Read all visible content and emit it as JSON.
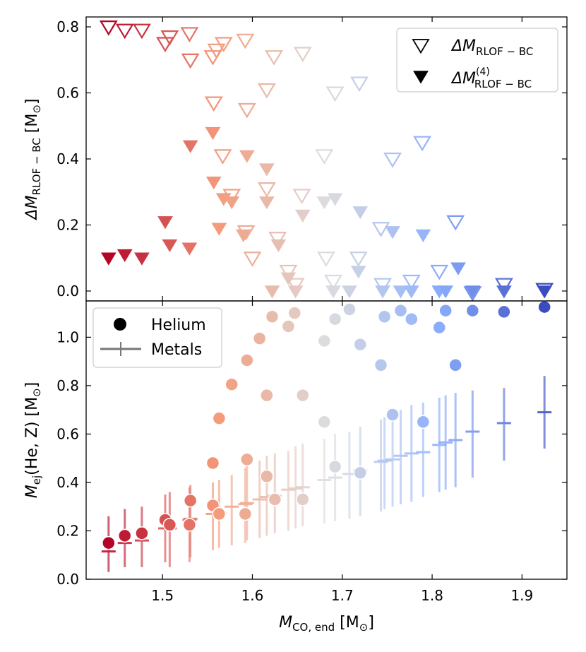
{
  "colors": {
    "cold": "#3a4cc0",
    "mid": "#dddcdc",
    "warm": "#b40426",
    "text": "#000000",
    "legend_border": "#cccccc"
  },
  "chart_data": [
    {
      "panel": "top",
      "type": "scatter",
      "xlabel": "M",
      "xlabel_sub": "CO, end",
      "xlabel_unit": "[M",
      "xlabel_unit_sub": "⊙",
      "xlabel_unit_close": "]",
      "ylabel": "ΔM",
      "ylabel_sub": "RLOF − BC",
      "ylabel_unit": "[M",
      "ylabel_unit_sub": "⊙",
      "ylabel_unit_close": "]",
      "xlim": [
        1.415,
        1.95
      ],
      "ylim": [
        -0.03,
        0.83
      ],
      "xticks": [
        "1.5",
        "1.6",
        "1.7",
        "1.8",
        "1.9"
      ],
      "xtick_values": [
        1.5,
        1.6,
        1.7,
        1.8,
        1.9
      ],
      "yticks": [
        "0.0",
        "0.2",
        "0.4",
        "0.6",
        "0.8"
      ],
      "ytick_values": [
        0.0,
        0.2,
        0.4,
        0.6,
        0.8
      ],
      "legend": [
        {
          "label": "ΔM",
          "sub": "RLOF − BC",
          "sup": "",
          "marker": "open-triangle"
        },
        {
          "label": "ΔM",
          "sub": "RLOF − BC",
          "sup": "(4)",
          "marker": "filled-triangle"
        }
      ],
      "series": [
        {
          "name": "ΔM_RLOF-BC",
          "marker": "open-triangle",
          "points": [
            [
              1.44,
              0.8
            ],
            [
              1.458,
              0.79
            ],
            [
              1.477,
              0.79
            ],
            [
              1.503,
              0.75
            ],
            [
              1.508,
              0.77
            ],
            [
              1.53,
              0.78
            ],
            [
              1.531,
              0.7
            ],
            [
              1.556,
              0.71
            ],
            [
              1.56,
              0.73
            ],
            [
              1.568,
              0.75
            ],
            [
              1.592,
              0.76
            ],
            [
              1.624,
              0.71
            ],
            [
              1.656,
              0.72
            ],
            [
              1.616,
              0.61
            ],
            [
              1.557,
              0.57
            ],
            [
              1.594,
              0.55
            ],
            [
              1.567,
              0.41
            ],
            [
              1.577,
              0.29
            ],
            [
              1.593,
              0.18
            ],
            [
              1.6,
              0.1
            ],
            [
              1.616,
              0.31
            ],
            [
              1.628,
              0.16
            ],
            [
              1.64,
              0.06
            ],
            [
              1.648,
              0.02
            ],
            [
              1.655,
              0.29
            ],
            [
              1.68,
              0.41
            ],
            [
              1.692,
              0.6
            ],
            [
              1.719,
              0.63
            ],
            [
              1.682,
              0.1
            ],
            [
              1.69,
              0.03
            ],
            [
              1.718,
              0.1
            ],
            [
              1.743,
              0.19
            ],
            [
              1.745,
              0.02
            ],
            [
              1.756,
              0.4
            ],
            [
              1.777,
              0.03
            ],
            [
              1.789,
              0.45
            ],
            [
              1.808,
              0.06
            ],
            [
              1.826,
              0.21
            ],
            [
              1.845,
              -0.005
            ],
            [
              1.88,
              0.02
            ],
            [
              1.925,
              0.005
            ]
          ]
        },
        {
          "name": "ΔM_RLOF-BC^(4)",
          "marker": "filled-triangle",
          "points": [
            [
              1.44,
              0.1
            ],
            [
              1.458,
              0.11
            ],
            [
              1.477,
              0.1
            ],
            [
              1.503,
              0.21
            ],
            [
              1.508,
              0.14
            ],
            [
              1.53,
              0.13
            ],
            [
              1.531,
              0.44
            ],
            [
              1.556,
              0.48
            ],
            [
              1.557,
              0.33
            ],
            [
              1.563,
              0.19
            ],
            [
              1.568,
              0.28
            ],
            [
              1.577,
              0.27
            ],
            [
              1.59,
              0.17
            ],
            [
              1.594,
              0.41
            ],
            [
              1.616,
              0.37
            ],
            [
              1.616,
              0.27
            ],
            [
              1.622,
              0.0
            ],
            [
              1.629,
              0.14
            ],
            [
              1.64,
              0.04
            ],
            [
              1.648,
              0.0
            ],
            [
              1.656,
              0.23
            ],
            [
              1.68,
              0.27
            ],
            [
              1.692,
              0.28
            ],
            [
              1.69,
              0.0
            ],
            [
              1.708,
              0.0
            ],
            [
              1.718,
              0.06
            ],
            [
              1.72,
              0.24
            ],
            [
              1.745,
              0.0
            ],
            [
              1.756,
              0.18
            ],
            [
              1.765,
              0.0
            ],
            [
              1.777,
              0.0
            ],
            [
              1.79,
              0.17
            ],
            [
              1.808,
              0.0
            ],
            [
              1.815,
              0.0
            ],
            [
              1.829,
              0.07
            ],
            [
              1.845,
              0.0
            ],
            [
              1.88,
              0.0
            ],
            [
              1.925,
              0.0
            ]
          ]
        }
      ]
    },
    {
      "panel": "bottom",
      "type": "scatter",
      "xlabel": "M",
      "xlabel_sub": "CO, end",
      "xlabel_unit": "[M",
      "xlabel_unit_sub": "⊙",
      "xlabel_unit_close": "]",
      "ylabel": "M",
      "ylabel_sub": "ej",
      "ylabel_rest": "(He, Z) [M",
      "ylabel_unit_sub": "⊙",
      "ylabel_unit_close": "]",
      "xlim": [
        1.415,
        1.95
      ],
      "ylim": [
        0.0,
        1.15
      ],
      "xticks": [
        "1.5",
        "1.6",
        "1.7",
        "1.8",
        "1.9"
      ],
      "xtick_values": [
        1.5,
        1.6,
        1.7,
        1.8,
        1.9
      ],
      "yticks": [
        "0.0",
        "0.2",
        "0.4",
        "0.6",
        "0.8",
        "1.0"
      ],
      "ytick_values": [
        0.0,
        0.2,
        0.4,
        0.6,
        0.8,
        1.0
      ],
      "legend": [
        {
          "label": "Helium",
          "marker": "circle"
        },
        {
          "label": "Metals",
          "marker": "errorbar"
        }
      ],
      "series": [
        {
          "name": "Helium",
          "marker": "circle",
          "points": [
            [
              1.44,
              0.15
            ],
            [
              1.458,
              0.18
            ],
            [
              1.477,
              0.19
            ],
            [
              1.503,
              0.245
            ],
            [
              1.508,
              0.225
            ],
            [
              1.53,
              0.225
            ],
            [
              1.531,
              0.325
            ],
            [
              1.556,
              0.305
            ],
            [
              1.556,
              0.48
            ],
            [
              1.563,
              0.27
            ],
            [
              1.563,
              0.665
            ],
            [
              1.577,
              0.805
            ],
            [
              1.592,
              0.27
            ],
            [
              1.594,
              0.495
            ],
            [
              1.594,
              0.905
            ],
            [
              1.608,
              0.995
            ],
            [
              1.616,
              0.425
            ],
            [
              1.616,
              0.76
            ],
            [
              1.622,
              1.085
            ],
            [
              1.625,
              0.33
            ],
            [
              1.64,
              1.045
            ],
            [
              1.647,
              1.1
            ],
            [
              1.656,
              0.33
            ],
            [
              1.656,
              0.76
            ],
            [
              1.68,
              0.65
            ],
            [
              1.68,
              0.985
            ],
            [
              1.692,
              1.075
            ],
            [
              1.692,
              0.465
            ],
            [
              1.708,
              1.115
            ],
            [
              1.72,
              0.44
            ],
            [
              1.72,
              0.97
            ],
            [
              1.743,
              0.885
            ],
            [
              1.747,
              1.085
            ],
            [
              1.756,
              0.68
            ],
            [
              1.765,
              1.11
            ],
            [
              1.777,
              1.075
            ],
            [
              1.79,
              0.65
            ],
            [
              1.808,
              1.04
            ],
            [
              1.815,
              1.11
            ],
            [
              1.826,
              0.885
            ],
            [
              1.845,
              1.11
            ],
            [
              1.88,
              1.105
            ],
            [
              1.925,
              1.125
            ]
          ]
        },
        {
          "name": "Metals",
          "marker": "errorbar",
          "points": [
            [
              1.44,
              0.115,
              0.03,
              0.26
            ],
            [
              1.458,
              0.15,
              0.05,
              0.29
            ],
            [
              1.477,
              0.16,
              0.05,
              0.3
            ],
            [
              1.503,
              0.21,
              0.07,
              0.35
            ],
            [
              1.508,
              0.21,
              0.05,
              0.36
            ],
            [
              1.53,
              0.245,
              0.07,
              0.38
            ],
            [
              1.531,
              0.25,
              0.09,
              0.39
            ],
            [
              1.556,
              0.27,
              0.12,
              0.4
            ],
            [
              1.563,
              0.275,
              0.13,
              0.41
            ],
            [
              1.577,
              0.3,
              0.14,
              0.43
            ],
            [
              1.592,
              0.31,
              0.15,
              0.46
            ],
            [
              1.594,
              0.315,
              0.16,
              0.47
            ],
            [
              1.608,
              0.33,
              0.17,
              0.49
            ],
            [
              1.616,
              0.34,
              0.18,
              0.51
            ],
            [
              1.625,
              0.345,
              0.19,
              0.52
            ],
            [
              1.64,
              0.37,
              0.2,
              0.53
            ],
            [
              1.648,
              0.375,
              0.21,
              0.55
            ],
            [
              1.656,
              0.38,
              0.22,
              0.56
            ],
            [
              1.68,
              0.41,
              0.23,
              0.58
            ],
            [
              1.692,
              0.42,
              0.24,
              0.6
            ],
            [
              1.708,
              0.435,
              0.25,
              0.61
            ],
            [
              1.72,
              0.45,
              0.26,
              0.63
            ],
            [
              1.743,
              0.485,
              0.28,
              0.66
            ],
            [
              1.747,
              0.49,
              0.29,
              0.67
            ],
            [
              1.756,
              0.495,
              0.3,
              0.69
            ],
            [
              1.765,
              0.51,
              0.31,
              0.7
            ],
            [
              1.777,
              0.52,
              0.32,
              0.72
            ],
            [
              1.79,
              0.525,
              0.34,
              0.73
            ],
            [
              1.808,
              0.555,
              0.36,
              0.75
            ],
            [
              1.815,
              0.565,
              0.37,
              0.76
            ],
            [
              1.826,
              0.575,
              0.38,
              0.77
            ],
            [
              1.845,
              0.61,
              0.42,
              0.78
            ],
            [
              1.88,
              0.645,
              0.49,
              0.79
            ],
            [
              1.925,
              0.69,
              0.54,
              0.84
            ]
          ]
        }
      ]
    }
  ]
}
